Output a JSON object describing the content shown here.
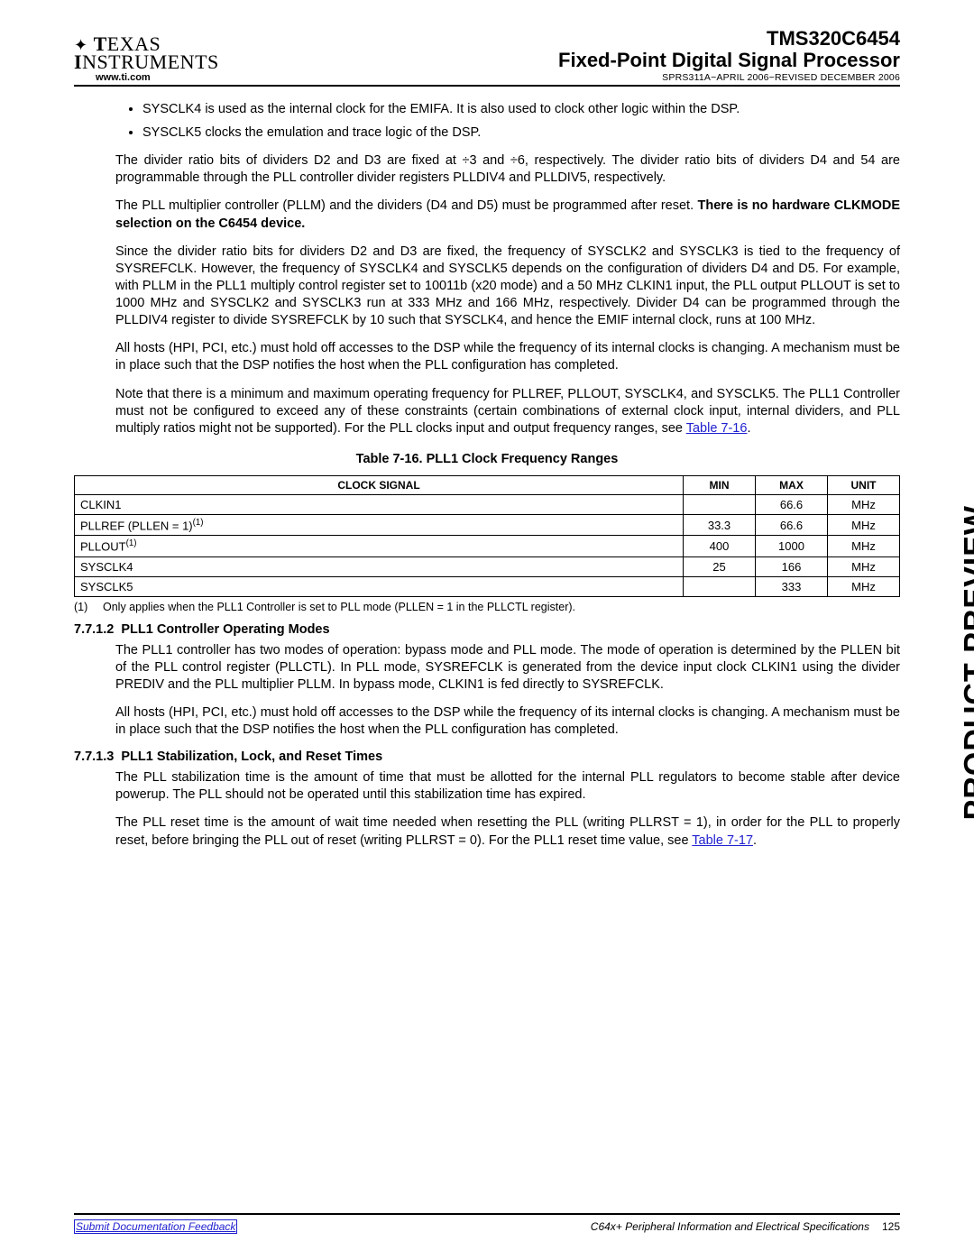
{
  "header": {
    "logo_line1_prefix": "T",
    "logo_line1_rest": "EXAS",
    "logo_line2_prefix": "I",
    "logo_line2_rest": "NSTRUMENTS",
    "url": "www.ti.com",
    "part": "TMS320C6454",
    "title": "Fixed-Point Digital Signal Processor",
    "meta": "SPRS311A−APRIL 2006−REVISED DECEMBER 2006"
  },
  "bullets": [
    "SYSCLK4 is used as the internal clock for the EMIFA. It is also used to clock other logic within the DSP.",
    "SYSCLK5 clocks the emulation and trace logic of the DSP."
  ],
  "paras": {
    "p1": "The divider ratio bits of dividers D2 and D3 are fixed at ÷3 and ÷6, respectively. The divider ratio bits of dividers D4 and 54 are programmable through the PLL controller divider registers PLLDIV4 and PLLDIV5, respectively.",
    "p2a": "The PLL multiplier controller (PLLM) and the dividers (D4 and D5) must be programmed after reset. ",
    "p2b": "There is no hardware CLKMODE selection on the C6454 device.",
    "p3": "Since the divider ratio bits for dividers D2 and D3 are fixed, the frequency of SYSCLK2 and SYSCLK3 is tied to the frequency of SYSREFCLK. However, the frequency of SYSCLK4 and SYSCLK5 depends on the configuration of dividers D4 and D5. For example, with PLLM in the PLL1 multiply control register set to 10011b (x20 mode) and a 50 MHz CLKIN1 input, the PLL output PLLOUT is set to 1000 MHz and SYSCLK2 and SYSCLK3 run at 333 MHz and 166 MHz, respectively. Divider D4 can be programmed through the PLLDIV4 register to divide SYSREFCLK by 10 such that SYSCLK4, and hence the EMIF internal clock, runs at 100 MHz.",
    "p4": "All hosts (HPI, PCI, etc.) must hold off accesses to the DSP while the frequency of its internal clocks is changing. A mechanism must be in place such that the DSP notifies the host when the PLL configuration has completed.",
    "p5a": "Note that there is a minimum and maximum operating frequency for PLLREF, PLLOUT, SYSCLK4, and SYSCLK5. The PLL1 Controller must not be configured to exceed any of these constraints (certain combinations of external clock input, internal dividers, and PLL multiply ratios might not be supported). For the PLL clocks input and output frequency ranges, see ",
    "p5link": "Table 7-16",
    "p5b": "."
  },
  "table": {
    "caption": "Table 7-16. PLL1 Clock Frequency Ranges",
    "headers": [
      "CLOCK SIGNAL",
      "MIN",
      "MAX",
      "UNIT"
    ],
    "rows": [
      {
        "signal": "CLKIN1",
        "min": "",
        "max": "66.6",
        "unit": "MHz",
        "sup": ""
      },
      {
        "signal": "PLLREF (PLLEN = 1)",
        "min": "33.3",
        "max": "66.6",
        "unit": "MHz",
        "sup": "(1)"
      },
      {
        "signal": "PLLOUT",
        "min": "400",
        "max": "1000",
        "unit": "MHz",
        "sup": "(1)"
      },
      {
        "signal": "SYSCLK4",
        "min": "25",
        "max": "166",
        "unit": "MHz",
        "sup": ""
      },
      {
        "signal": "SYSCLK5",
        "min": "",
        "max": "333",
        "unit": "MHz",
        "sup": ""
      }
    ],
    "footnotes": [
      {
        "num": "(1)",
        "text": "Only applies when the PLL1 Controller is set to PLL mode (PLLEN = 1 in the PLLCTL register)."
      }
    ]
  },
  "sec7712": {
    "num": "7.7.1.2",
    "title": "PLL1 Controller Operating Modes",
    "p1": "The PLL1 controller has two modes of operation: bypass mode and PLL mode. The mode of operation is determined by the PLLEN bit of the PLL control register (PLLCTL). In PLL mode, SYSREFCLK is generated from the device input clock CLKIN1 using the divider PREDIV and the PLL multiplier PLLM. In bypass mode, CLKIN1 is fed directly to SYSREFCLK.",
    "p2": "All hosts (HPI, PCI, etc.) must hold off accesses to the DSP while the frequency of its internal clocks is changing. A mechanism must be in place such that the DSP notifies the host when the PLL configuration has completed."
  },
  "sec7713": {
    "num": "7.7.1.3",
    "title": "PLL1 Stabilization, Lock, and Reset Times",
    "p1": "The PLL stabilization time is the amount of time that must be allotted for the internal PLL regulators to become stable after device powerup. The PLL should not be operated until this stabilization time has expired.",
    "p2a": "The PLL reset time is the amount of wait time needed when resetting the PLL (writing PLLRST = 1), in order for the PLL to properly reset, before bringing the PLL out of reset (writing PLLRST = 0). For the PLL1 reset time value, see ",
    "p2link": "Table 7-17",
    "p2b": "."
  },
  "side_label": "PRODUCT PREVIEW",
  "footer": {
    "left": "Submit Documentation Feedback",
    "right": "C64x+ Peripheral Information and Electrical Specifications",
    "page": "125"
  }
}
